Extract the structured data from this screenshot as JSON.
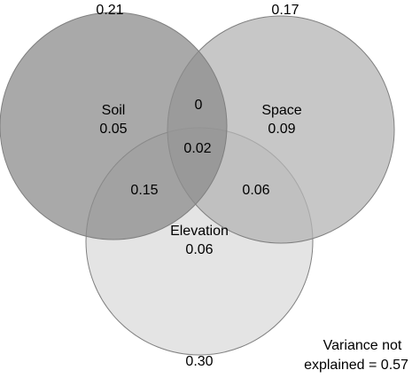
{
  "diagram": {
    "type": "venn-3",
    "circles": [
      {
        "id": "soil",
        "total": "0.21",
        "color": "#8c8c8c",
        "opacity": 0.75
      },
      {
        "id": "space",
        "total": "0.17",
        "color": "#b4b4b4",
        "opacity": 0.75
      },
      {
        "id": "elevation",
        "total": "0.30",
        "color": "#d2d2d2",
        "opacity": 0.6
      }
    ],
    "labels": {
      "soil": "Soil",
      "soil_unique": "0.05",
      "space": "Space",
      "space_unique": "0.09",
      "elevation": "Elevation",
      "elevation_unique": "0.06",
      "soil_space": "0",
      "soil_space_elevation": "0.02",
      "soil_elevation": "0.15",
      "space_elevation": "0.06"
    },
    "unexplained": {
      "line1": "Variance not",
      "line2": "explained = 0.57"
    }
  }
}
